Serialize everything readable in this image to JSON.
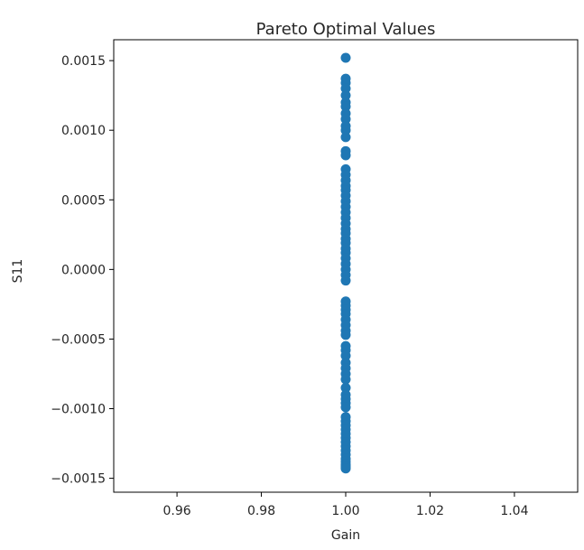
{
  "chart_data": {
    "type": "scatter",
    "title": "Pareto Optimal Values",
    "xlabel": "Gain",
    "ylabel": "S11",
    "xlim": [
      0.945,
      1.055
    ],
    "ylim": [
      -0.0016,
      0.00165
    ],
    "x_ticks": [
      {
        "value": 0.96,
        "label": "0.96"
      },
      {
        "value": 0.98,
        "label": "0.98"
      },
      {
        "value": 1.0,
        "label": "1.00"
      },
      {
        "value": 1.02,
        "label": "1.02"
      },
      {
        "value": 1.04,
        "label": "1.04"
      }
    ],
    "y_ticks": [
      {
        "value": 0.0015,
        "label": "0.0015"
      },
      {
        "value": 0.001,
        "label": "0.0010"
      },
      {
        "value": 0.0005,
        "label": "0.0005"
      },
      {
        "value": 0.0,
        "label": "0.0000"
      },
      {
        "value": -0.0005,
        "label": "−0.0005"
      },
      {
        "value": -0.001,
        "label": "−0.0010"
      },
      {
        "value": -0.0015,
        "label": "−0.0015"
      }
    ],
    "grid": false,
    "marker_color": "#1f77b4",
    "series": [
      {
        "x": [
          1.0,
          1.0,
          1.0,
          1.0,
          1.0,
          1.0,
          1.0,
          1.0,
          1.0,
          1.0,
          1.0,
          1.0,
          1.0,
          1.0,
          1.0,
          1.0,
          1.0,
          1.0,
          1.0,
          1.0,
          1.0,
          1.0,
          1.0,
          1.0,
          1.0,
          1.0,
          1.0,
          1.0,
          1.0,
          1.0,
          1.0,
          1.0,
          1.0,
          1.0,
          1.0,
          1.0,
          1.0,
          1.0,
          1.0,
          1.0,
          1.0,
          1.0,
          1.0,
          1.0,
          1.0,
          1.0,
          1.0,
          1.0,
          1.0,
          1.0,
          1.0,
          1.0,
          1.0,
          1.0,
          1.0,
          1.0,
          1.0,
          1.0,
          1.0,
          1.0,
          1.0,
          1.0,
          1.0,
          1.0,
          1.0,
          1.0,
          1.0,
          1.0,
          1.0,
          1.0,
          1.0,
          1.0
        ],
        "y": [
          0.00152,
          0.00137,
          0.00134,
          0.0013,
          0.00125,
          0.0012,
          0.00117,
          0.00112,
          0.00108,
          0.00103,
          0.001,
          0.00095,
          0.00085,
          0.00082,
          0.00072,
          0.00068,
          0.00064,
          0.0006,
          0.00057,
          0.00053,
          0.00049,
          0.00045,
          0.00041,
          0.00037,
          0.00033,
          0.00029,
          0.00026,
          0.00022,
          0.00019,
          0.00015,
          0.00012,
          8e-05,
          4e-05,
          0.0,
          -4e-05,
          -8e-05,
          -0.00023,
          -0.00026,
          -0.00029,
          -0.00032,
          -0.00036,
          -0.0004,
          -0.00044,
          -0.00047,
          -0.00055,
          -0.00058,
          -0.00062,
          -0.00067,
          -0.00071,
          -0.00075,
          -0.00079,
          -0.00085,
          -0.0009,
          -0.00093,
          -0.00096,
          -0.00099,
          -0.00106,
          -0.00109,
          -0.00112,
          -0.00115,
          -0.00118,
          -0.00121,
          -0.00124,
          -0.00127,
          -0.0013,
          -0.00133,
          -0.00136,
          -0.00138,
          -0.0014,
          -0.00141,
          -0.00142,
          -0.00143
        ]
      }
    ]
  }
}
